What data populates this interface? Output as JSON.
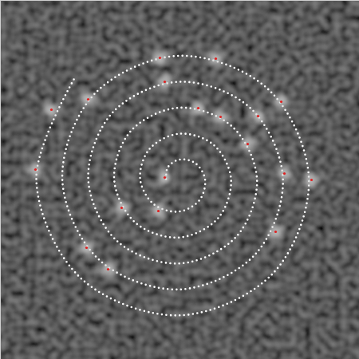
{
  "chart_data": {
    "type": "scatter",
    "xlim": [
      0,
      450
    ],
    "ylim": [
      450,
      0
    ],
    "tick_labels": false,
    "grid": false,
    "series": [
      {
        "type": "line",
        "color": "#ffffff",
        "line_style": "dotted",
        "x": [
          207.7,
          209.6,
          224,
          244.1,
          256.5,
          249.9,
          224,
          192.4,
          175.2,
          186.6,
          224,
          267.1,
          289.1,
          272.9,
          224,
          169.3,
          142.6,
          163.6,
          224,
          290.2,
          321.6,
          295.9,
          224,
          146.3,
          110.1,
          140.6,
          224,
          313.2,
          354.2,
          318.9,
          224,
          123.3,
          77.6,
          117.6,
          224,
          336.2,
          386.7,
          341.9,
          224,
          100.3,
          45,
          94.6
        ],
        "y": [
          224,
          209.6,
          199.6,
          203.9,
          224,
          249.9,
          264.7,
          255.6,
          224,
          186.6,
          167.1,
          180.9,
          224,
          272.9,
          297.2,
          278.7,
          224,
          163.6,
          134.5,
          157.8,
          224,
          295.9,
          329.8,
          301.7,
          224,
          140.6,
          102,
          134.8,
          224,
          318.9,
          362.3,
          324.7,
          224,
          117.6,
          69.4,
          111.8,
          224,
          341.9,
          394.8,
          347.7,
          224,
          94.6
        ]
      },
      {
        "type": "scatter",
        "color": "#d2d2d2",
        "marker": "blob",
        "x": [
          200,
          270,
          206,
          110,
          352,
          64,
          248,
          276,
          323,
          310,
          44,
          356,
          390,
          206,
          152,
          198,
          345,
          108,
          135
        ],
        "y": [
          72,
          73,
          102,
          124,
          127,
          137,
          135,
          146,
          145,
          180,
          212,
          217,
          225,
          222,
          260,
          264,
          290,
          310,
          337
        ]
      },
      {
        "type": "scatter",
        "color": "#e02020",
        "marker": "dot",
        "x": [
          200,
          270,
          206,
          110,
          352,
          64,
          248,
          276,
          323,
          310,
          44,
          356,
          390,
          206,
          152,
          198,
          345,
          108,
          135
        ],
        "y": [
          72,
          73,
          102,
          124,
          127,
          137,
          135,
          146,
          145,
          180,
          212,
          217,
          225,
          222,
          260,
          264,
          290,
          310,
          337
        ]
      }
    ]
  }
}
